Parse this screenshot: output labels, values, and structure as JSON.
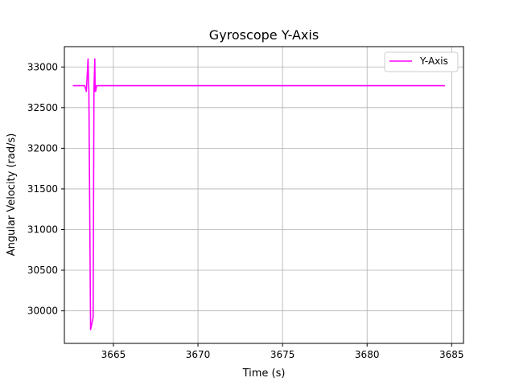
{
  "chart_data": {
    "type": "line",
    "title": "Gyroscope Y-Axis",
    "xlabel": "Time (s)",
    "ylabel": "Angular Velocity (rad/s)",
    "xlim": [
      3662.1,
      3685.7
    ],
    "ylim": [
      29600,
      33250
    ],
    "xticks": [
      3665,
      3670,
      3675,
      3680,
      3685
    ],
    "yticks": [
      30000,
      30500,
      31000,
      31500,
      32000,
      32500,
      33000
    ],
    "grid": true,
    "legend_position": "top-right",
    "series": [
      {
        "name": "Y-Axis",
        "color": "#ff00ff",
        "x": [
          3662.6,
          3663.3,
          3663.4,
          3663.5,
          3663.55,
          3663.65,
          3663.8,
          3663.85,
          3663.9,
          3663.92,
          3663.95,
          3664.0,
          3664.1,
          3670.0,
          3684.6
        ],
        "y": [
          32770,
          32770,
          32700,
          33100,
          32680,
          29770,
          29920,
          32730,
          33100,
          32700,
          32700,
          32770,
          32770,
          32770,
          32770
        ]
      }
    ]
  }
}
